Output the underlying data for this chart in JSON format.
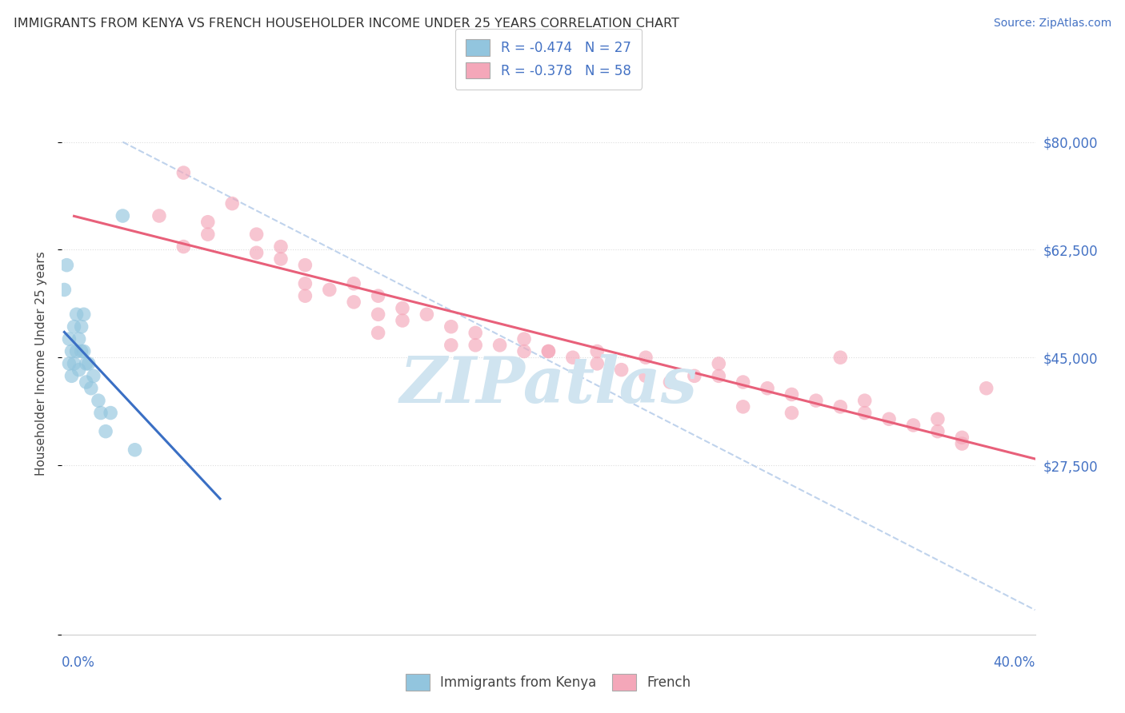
{
  "title": "IMMIGRANTS FROM KENYA VS FRENCH HOUSEHOLDER INCOME UNDER 25 YEARS CORRELATION CHART",
  "source": "Source: ZipAtlas.com",
  "ylabel": "Householder Income Under 25 years",
  "legend_label_blue": "Immigrants from Kenya",
  "legend_label_pink": "French",
  "r_blue": -0.474,
  "n_blue": 27,
  "r_pink": -0.378,
  "n_pink": 58,
  "color_blue": "#92C5DE",
  "color_pink": "#F4A7B9",
  "trendline_blue": "#3A6FC4",
  "trendline_pink": "#E8607A",
  "dashed_line_color": "#B0C8E8",
  "watermark_color": "#D0E4F0",
  "y_tick_vals": [
    0,
    27500,
    45000,
    62500,
    80000
  ],
  "y_tick_labels": [
    "",
    "$27,500",
    "$45,000",
    "$62,500",
    "$80,000"
  ],
  "xlim": [
    0.0,
    0.4
  ],
  "ylim": [
    0,
    88000
  ],
  "blue_x": [
    0.001,
    0.002,
    0.003,
    0.003,
    0.004,
    0.004,
    0.005,
    0.005,
    0.006,
    0.006,
    0.007,
    0.007,
    0.008,
    0.008,
    0.009,
    0.009,
    0.01,
    0.01,
    0.011,
    0.012,
    0.013,
    0.015,
    0.016,
    0.018,
    0.02,
    0.025,
    0.03
  ],
  "blue_y": [
    56000,
    60000,
    48000,
    44000,
    42000,
    46000,
    50000,
    44000,
    52000,
    46000,
    48000,
    43000,
    50000,
    46000,
    52000,
    46000,
    44000,
    41000,
    44000,
    40000,
    42000,
    38000,
    36000,
    33000,
    36000,
    68000,
    30000
  ],
  "pink_x": [
    0.04,
    0.05,
    0.06,
    0.07,
    0.08,
    0.09,
    0.09,
    0.1,
    0.1,
    0.11,
    0.12,
    0.12,
    0.13,
    0.13,
    0.14,
    0.14,
    0.15,
    0.16,
    0.17,
    0.18,
    0.19,
    0.19,
    0.2,
    0.21,
    0.22,
    0.23,
    0.24,
    0.25,
    0.26,
    0.27,
    0.28,
    0.29,
    0.3,
    0.31,
    0.32,
    0.33,
    0.34,
    0.35,
    0.36,
    0.37,
    0.37,
    0.38,
    0.28,
    0.32,
    0.24,
    0.2,
    0.16,
    0.13,
    0.1,
    0.08,
    0.06,
    0.05,
    0.17,
    0.22,
    0.3,
    0.36,
    0.33,
    0.27
  ],
  "pink_y": [
    68000,
    75000,
    67000,
    70000,
    65000,
    63000,
    61000,
    57000,
    60000,
    56000,
    54000,
    57000,
    52000,
    55000,
    51000,
    53000,
    52000,
    50000,
    49000,
    47000,
    46000,
    48000,
    46000,
    45000,
    44000,
    43000,
    42000,
    41000,
    42000,
    42000,
    41000,
    40000,
    39000,
    38000,
    37000,
    36000,
    35000,
    34000,
    33000,
    32000,
    31000,
    40000,
    37000,
    45000,
    45000,
    46000,
    47000,
    49000,
    55000,
    62000,
    65000,
    63000,
    47000,
    46000,
    36000,
    35000,
    38000,
    44000
  ]
}
